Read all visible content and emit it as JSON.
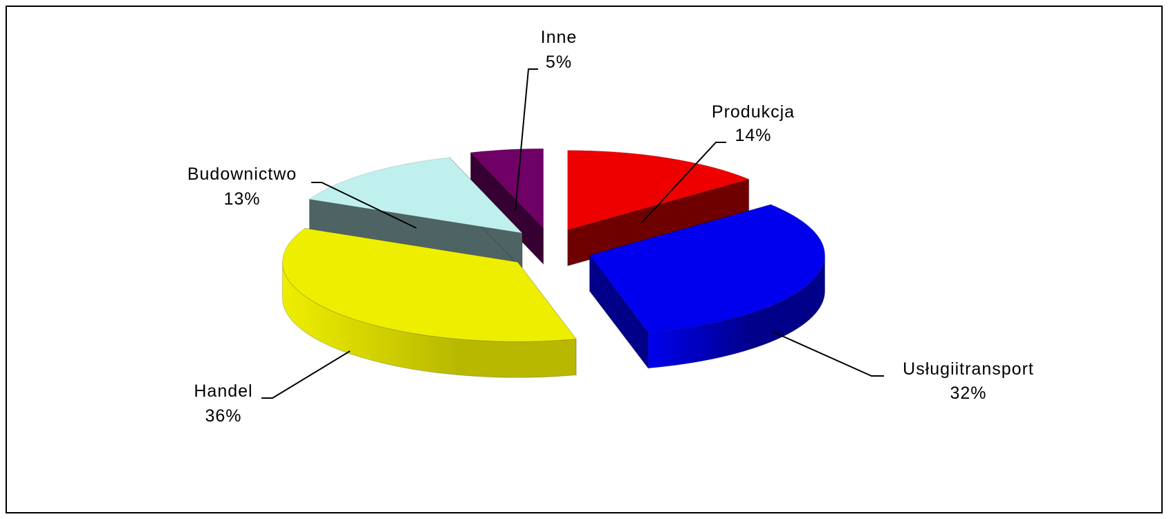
{
  "chart_data": {
    "type": "pie",
    "style": "3d-exploded",
    "title": "",
    "slices": [
      {
        "label": "Produkcja",
        "value": 14,
        "percent_text": "14%",
        "color": "#ee0000",
        "side_color": "#6e0000"
      },
      {
        "label": "Usługiitransport",
        "value": 32,
        "percent_text": "32%",
        "color": "#0000ee",
        "side_color": "#000088"
      },
      {
        "label": "Handel",
        "value": 36,
        "percent_text": "36%",
        "color": "#eeee00",
        "side_color": "#b8b800"
      },
      {
        "label": "Budownictwo",
        "value": 13,
        "percent_text": "13%",
        "color": "#bff0ee",
        "side_color": "#4e6464"
      },
      {
        "label": "Inne",
        "value": 5,
        "percent_text": "5%",
        "color": "#6e0066",
        "side_color": "#360033"
      }
    ],
    "legend": "none",
    "data_labels": "outside with leader lines"
  }
}
